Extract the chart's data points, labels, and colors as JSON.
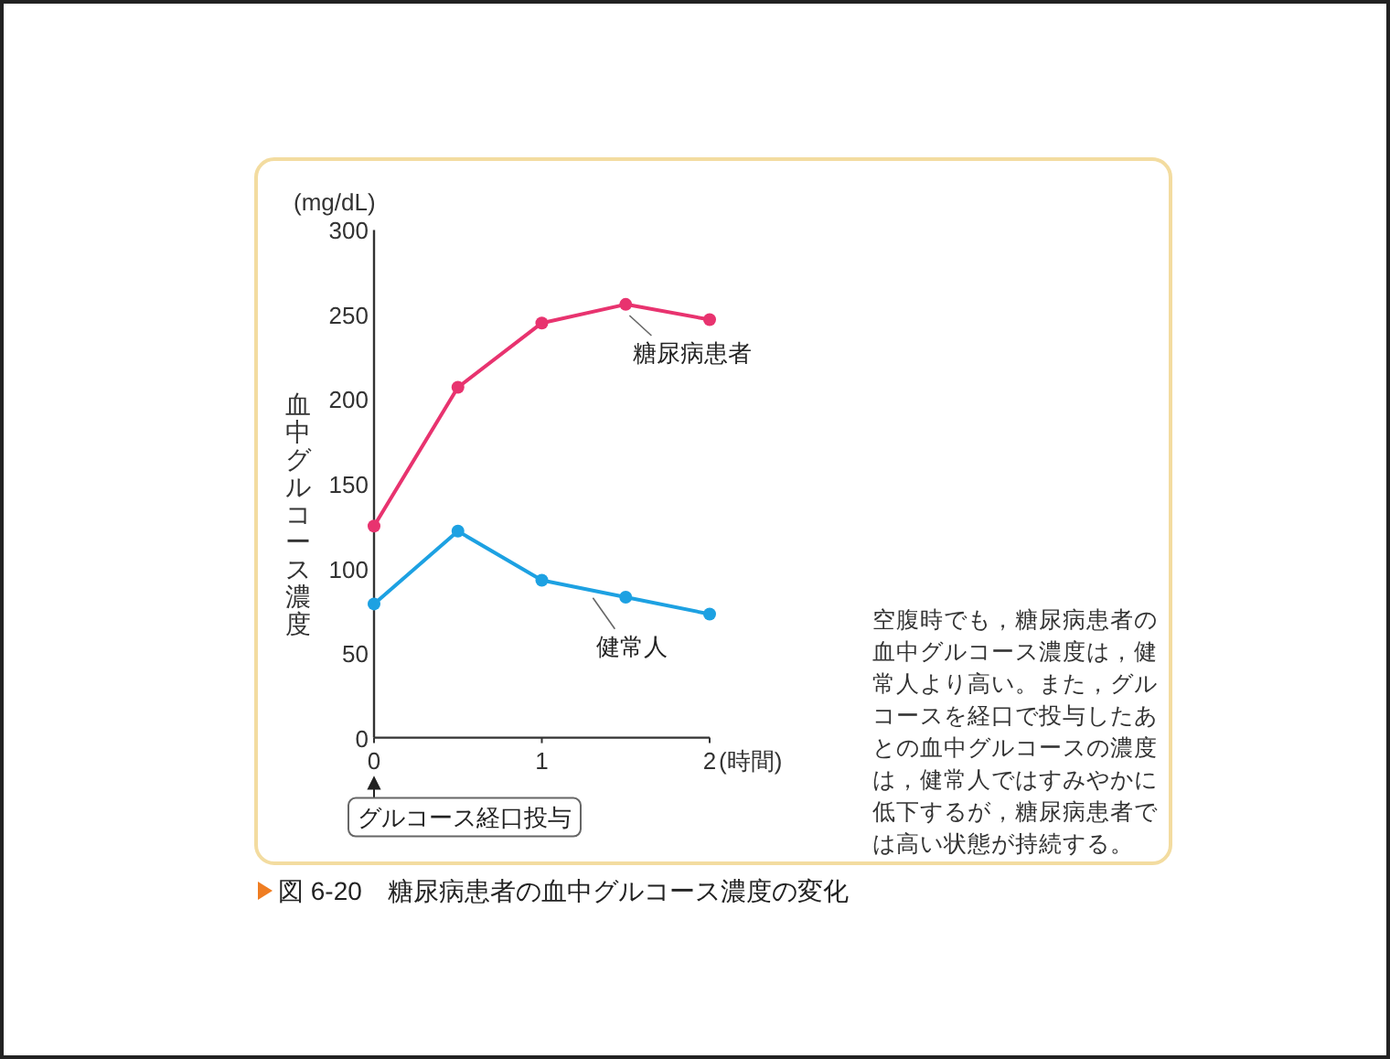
{
  "chart_data": {
    "type": "line",
    "title": "図 6-20　糖尿病患者の血中グルコース濃度の変化",
    "xlabel": "(時間)",
    "ylabel": "血中グルコース濃度",
    "annotations": [
      "(mg/dL)",
      "グルコース経口投与",
      "空腹時でも，糖尿病患者の血中グルコース濃度は，健常人より高い。また，グルコースを経口で投与したあとの血中グルコースの濃度は，健常人ではすみやかに低下するが，糖尿病患者では高い状態が持続する。"
    ],
    "x": [
      0,
      0.5,
      1,
      1.5,
      2
    ],
    "series": [
      {
        "name": "糖尿病患者",
        "color": "#e8336f",
        "values": [
          125,
          207,
          245,
          256,
          247
        ]
      },
      {
        "name": "健常人",
        "color": "#1da1e2",
        "values": [
          79,
          122,
          93,
          83,
          73
        ]
      }
    ],
    "xlim": [
      0,
      2
    ],
    "ylim": [
      0,
      300
    ],
    "xticks": [
      0,
      1,
      2
    ],
    "yticks": [
      0,
      50,
      100,
      150,
      200,
      250,
      300
    ],
    "marker": "circle"
  }
}
